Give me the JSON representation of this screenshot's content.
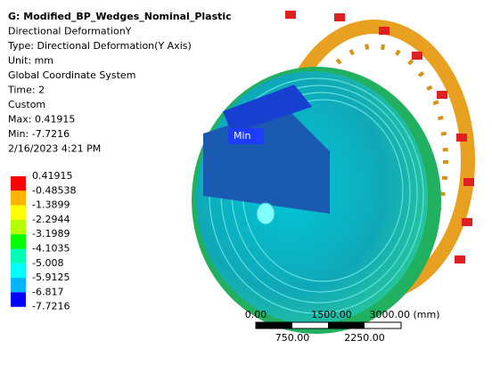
{
  "header": {
    "title": "G: Modified_BP_Wedges_Nominal_Plastic",
    "lines": [
      "Directional DeformationY",
      "Type: Directional Deformation(Y Axis)",
      "Unit: mm",
      "Global Coordinate System",
      "Time: 2",
      "Custom",
      "Max: 0.41915",
      "Min: -7.7216",
      "2/16/2023 4:21 PM"
    ]
  },
  "legend": {
    "labels": [
      "0.41915",
      "-0.48538",
      "-1.3899",
      "-2.2944",
      "-3.1989",
      "-4.1035",
      "-5.008",
      "-5.9125",
      "-6.817",
      "-7.7216"
    ],
    "colors": [
      "#ff0000",
      "#ffb400",
      "#ffff00",
      "#b4ff00",
      "#00ff00",
      "#00ffb4",
      "#00ffff",
      "#00b4ff",
      "#0000ff"
    ]
  },
  "probe": {
    "label": "Min"
  },
  "scale_bar": {
    "top_labels": [
      "0.00",
      "1500.00",
      "3000.00 (mm)"
    ],
    "bottom_labels": [
      "750.00",
      "2250.00"
    ]
  }
}
